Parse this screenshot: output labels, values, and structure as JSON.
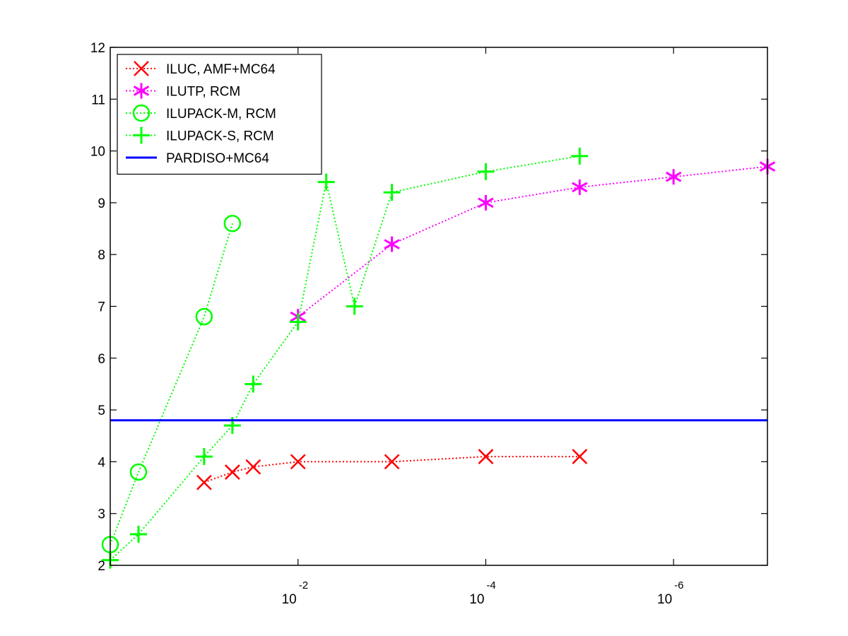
{
  "chart_data": {
    "type": "line",
    "title": "",
    "xlabel": "",
    "ylabel": "",
    "x_scale": "log",
    "x_direction": "reversed",
    "xlim": [
      1,
      1e-07
    ],
    "ylim": [
      2,
      12
    ],
    "x_ticks": [
      0.01,
      0.0001,
      1e-06
    ],
    "x_tick_labels": [
      {
        "base": "10",
        "exp": "-2"
      },
      {
        "base": "10",
        "exp": "-4"
      },
      {
        "base": "10",
        "exp": "-6"
      }
    ],
    "y_ticks": [
      2,
      3,
      4,
      5,
      6,
      7,
      8,
      9,
      10,
      11,
      12
    ],
    "y_tick_labels": [
      "2",
      "3",
      "4",
      "5",
      "6",
      "7",
      "8",
      "9",
      "10",
      "11",
      "12"
    ],
    "grid": false,
    "legend_position": "top-left",
    "series": [
      {
        "name": "ILUC, AMF+MC64",
        "color": "#ff0000",
        "marker": "x",
        "line_style": "dotted",
        "x": [
          0.1,
          0.05,
          0.03,
          0.01,
          0.001,
          0.0001,
          1e-05
        ],
        "y": [
          3.6,
          3.8,
          3.9,
          4.0,
          4.0,
          4.1,
          4.1
        ]
      },
      {
        "name": "ILUTP, RCM",
        "color": "#ff00ff",
        "marker": "asterisk",
        "line_style": "dotted",
        "x": [
          0.01,
          0.001,
          0.0001,
          1e-05,
          1e-06,
          1e-07
        ],
        "y": [
          6.8,
          8.2,
          9.0,
          9.3,
          9.5,
          9.7
        ]
      },
      {
        "name": "ILUPACK-M, RCM",
        "color": "#00ff00",
        "marker": "circle",
        "line_style": "dotted",
        "x": [
          1,
          0.5,
          0.1,
          0.05
        ],
        "y": [
          2.4,
          3.8,
          6.8,
          8.6
        ]
      },
      {
        "name": "ILUPACK-S, RCM",
        "color": "#00ff00",
        "marker": "plus",
        "line_style": "dotted",
        "x": [
          1,
          0.5,
          0.1,
          0.05,
          0.03,
          0.01,
          0.005,
          0.0025,
          0.001,
          0.0001,
          1e-05
        ],
        "y": [
          2.1,
          2.6,
          4.1,
          4.7,
          5.5,
          6.7,
          9.4,
          7.0,
          9.2,
          9.6,
          9.9
        ]
      },
      {
        "name": "PARDISO+MC64",
        "color": "#0000ff",
        "marker": "none",
        "line_style": "solid",
        "x": [
          1,
          1e-07
        ],
        "y": [
          4.8,
          4.8
        ]
      }
    ]
  }
}
